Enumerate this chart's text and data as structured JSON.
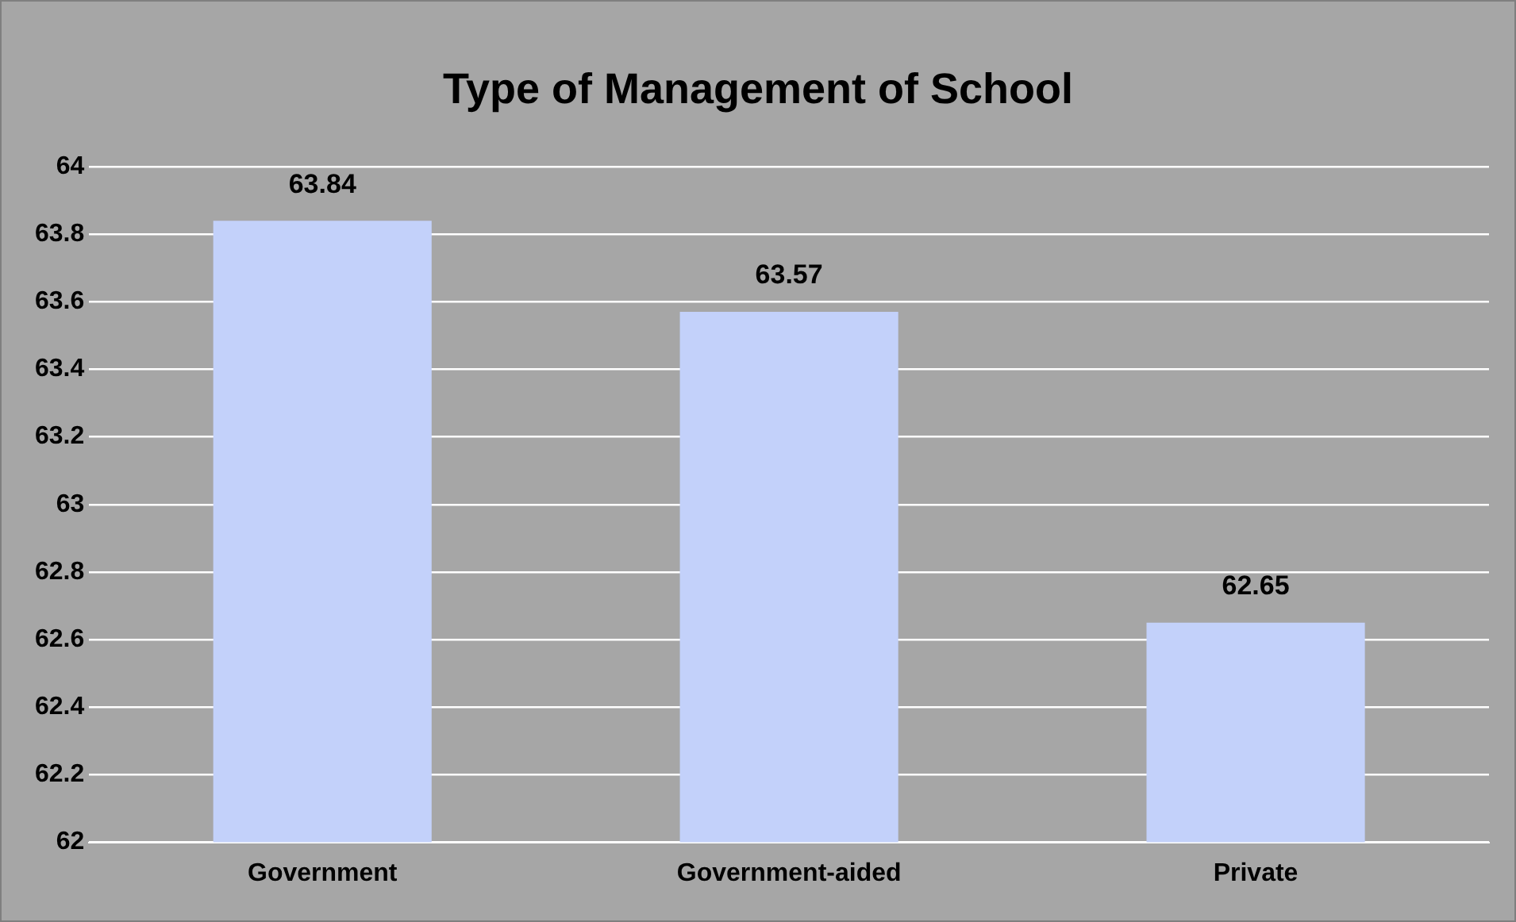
{
  "chart_data": {
    "type": "bar",
    "title": "Type of Management of School",
    "categories": [
      "Government",
      "Government-aided",
      "Private"
    ],
    "values": [
      63.84,
      63.57,
      62.65
    ],
    "color": "#c3d1fa",
    "ylim": [
      62,
      64
    ],
    "yticks": [
      62,
      62.2,
      62.4,
      62.6,
      62.8,
      63,
      63.2,
      63.4,
      63.6,
      63.8,
      64
    ],
    "grid": "y",
    "data_labels": true
  }
}
